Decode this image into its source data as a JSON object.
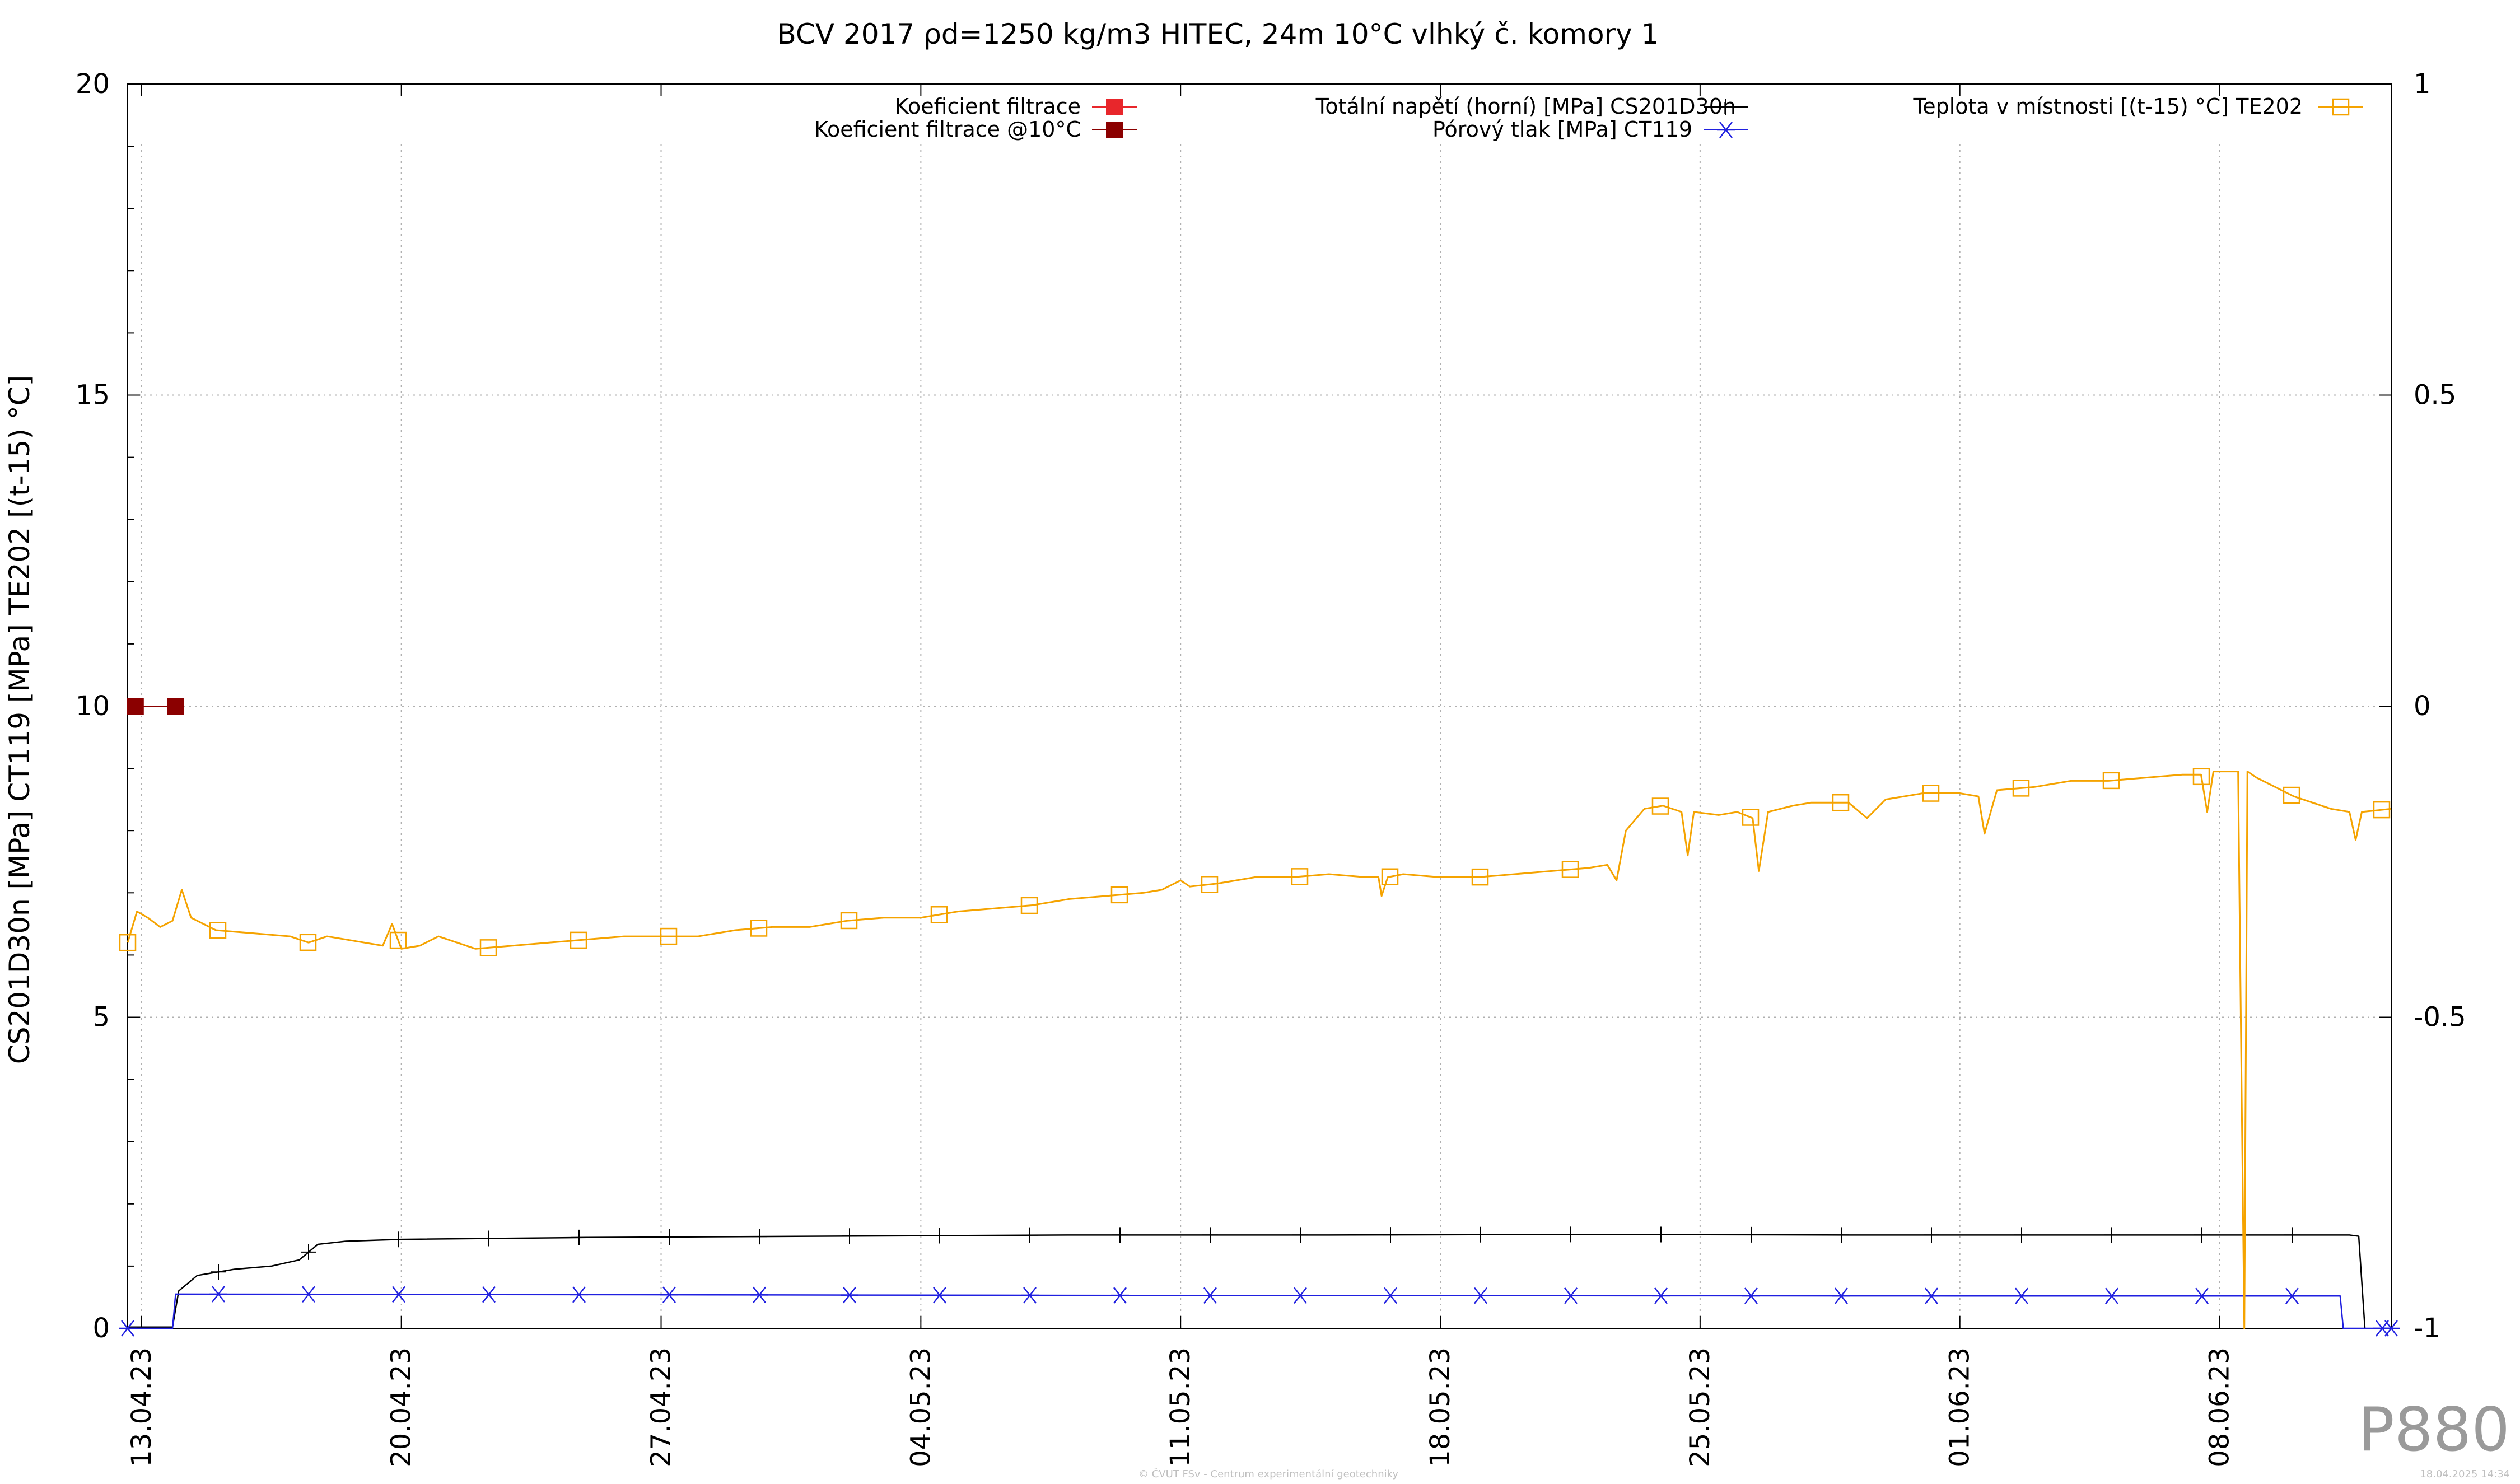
{
  "chart_data": {
    "type": "line",
    "title": "BCV 2017 ρd=1250 kg/m3 HITEC, 24m 10°C vlhký č. komory 1",
    "ylabel": "CS201D30n [MPa] CT119 [MPa] TE202 [(t-15) °C]",
    "xlabel": "",
    "ylim": [
      0,
      20
    ],
    "y2lim": [
      -1,
      1
    ],
    "yticks": [
      "0",
      "5",
      "10",
      "15",
      "20"
    ],
    "y2ticks": [
      "-1",
      "-0.5",
      "0",
      "0.5",
      "1"
    ],
    "xlim": [
      "2023-04-12T15:00",
      "2023-06-12T15:00"
    ],
    "xticks": [
      {
        "date": "2023-04-13",
        "label": "13.04.23"
      },
      {
        "date": "2023-04-20",
        "label": "20.04.23"
      },
      {
        "date": "2023-04-27",
        "label": "27.04.23"
      },
      {
        "date": "2023-05-04",
        "label": "04.05.23"
      },
      {
        "date": "2023-05-11",
        "label": "11.05.23"
      },
      {
        "date": "2023-05-18",
        "label": "18.05.23"
      },
      {
        "date": "2023-05-25",
        "label": "25.05.23"
      },
      {
        "date": "2023-06-01",
        "label": "01.06.23"
      },
      {
        "date": "2023-06-08",
        "label": "08.06.23"
      }
    ],
    "grid": true,
    "legend_position": "top",
    "series": [
      {
        "name": "Koeficient filtrace",
        "color": "#e8262b",
        "marker": "filled-square",
        "axis": "y2",
        "points": []
      },
      {
        "name": "Koeficient filtrace @10°C",
        "color": "#8b0000",
        "marker": "filled-square",
        "axis": "y2",
        "points": [
          [
            "2023-04-12T20:00",
            0.0
          ],
          [
            "2023-04-13T22:00",
            0.0
          ]
        ]
      },
      {
        "name": "Totální napětí (horní) [MPa] CS201D30n",
        "color": "#000000",
        "marker": "plus",
        "axis": "y",
        "points": [
          [
            "2023-04-12T15:00",
            0.02
          ],
          [
            "2023-04-13T20:00",
            0.02
          ],
          [
            "2023-04-14T00:00",
            0.6
          ],
          [
            "2023-04-14T12:00",
            0.85
          ],
          [
            "2023-04-15T12:00",
            0.95
          ],
          [
            "2023-04-16T12:00",
            1.0
          ],
          [
            "2023-04-17T06:00",
            1.1
          ],
          [
            "2023-04-17T18:00",
            1.35
          ],
          [
            "2023-04-18T12:00",
            1.4
          ],
          [
            "2023-04-20T00:00",
            1.43
          ],
          [
            "2023-04-25T00:00",
            1.46
          ],
          [
            "2023-05-01T00:00",
            1.48
          ],
          [
            "2023-05-08T00:00",
            1.5
          ],
          [
            "2023-05-15T00:00",
            1.5
          ],
          [
            "2023-05-22T00:00",
            1.51
          ],
          [
            "2023-05-29T00:00",
            1.5
          ],
          [
            "2023-06-05T00:00",
            1.5
          ],
          [
            "2023-06-11T12:00",
            1.5
          ],
          [
            "2023-06-11T18:00",
            1.48
          ],
          [
            "2023-06-11T22:00",
            0.0
          ]
        ]
      },
      {
        "name": "Pórový tlak [MPa] CT119",
        "color": "#2020e0",
        "marker": "asterisk",
        "axis": "y",
        "points": [
          [
            "2023-04-12T15:00",
            0.0
          ],
          [
            "2023-04-13T20:00",
            0.0
          ],
          [
            "2023-04-13T22:00",
            0.55
          ],
          [
            "2023-05-08T00:00",
            0.53
          ],
          [
            "2023-06-01T00:00",
            0.52
          ],
          [
            "2023-06-11T06:00",
            0.52
          ],
          [
            "2023-06-11T08:00",
            0.0
          ],
          [
            "2023-06-12T15:00",
            0.0
          ]
        ]
      },
      {
        "name": "Teplota v místnosti [(t-15) °C] TE202",
        "color": "#f5a300",
        "marker": "open-square",
        "axis": "y",
        "points": [
          [
            "2023-04-12T15:00",
            6.2
          ],
          [
            "2023-04-12T21:00",
            6.7
          ],
          [
            "2023-04-13T04:00",
            6.6
          ],
          [
            "2023-04-13T12:00",
            6.45
          ],
          [
            "2023-04-13T20:00",
            6.55
          ],
          [
            "2023-04-14T02:00",
            7.05
          ],
          [
            "2023-04-14T08:00",
            6.6
          ],
          [
            "2023-04-15T00:00",
            6.4
          ],
          [
            "2023-04-16T00:00",
            6.35
          ],
          [
            "2023-04-17T00:00",
            6.3
          ],
          [
            "2023-04-17T12:00",
            6.2
          ],
          [
            "2023-04-18T00:00",
            6.3
          ],
          [
            "2023-04-19T00:00",
            6.2
          ],
          [
            "2023-04-19T12:00",
            6.15
          ],
          [
            "2023-04-19T18:00",
            6.5
          ],
          [
            "2023-04-20T00:00",
            6.1
          ],
          [
            "2023-04-20T12:00",
            6.15
          ],
          [
            "2023-04-21T00:00",
            6.3
          ],
          [
            "2023-04-21T12:00",
            6.2
          ],
          [
            "2023-04-22T00:00",
            6.1
          ],
          [
            "2023-04-23T00:00",
            6.15
          ],
          [
            "2023-04-24T00:00",
            6.2
          ],
          [
            "2023-04-25T00:00",
            6.25
          ],
          [
            "2023-04-26T00:00",
            6.3
          ],
          [
            "2023-04-27T00:00",
            6.3
          ],
          [
            "2023-04-28T00:00",
            6.3
          ],
          [
            "2023-04-29T00:00",
            6.4
          ],
          [
            "2023-04-30T00:00",
            6.45
          ],
          [
            "2023-05-01T00:00",
            6.45
          ],
          [
            "2023-05-02T00:00",
            6.55
          ],
          [
            "2023-05-03T00:00",
            6.6
          ],
          [
            "2023-05-04T00:00",
            6.6
          ],
          [
            "2023-05-05T00:00",
            6.7
          ],
          [
            "2023-05-06T00:00",
            6.75
          ],
          [
            "2023-05-07T00:00",
            6.8
          ],
          [
            "2023-05-08T00:00",
            6.9
          ],
          [
            "2023-05-09T00:00",
            6.95
          ],
          [
            "2023-05-10T00:00",
            7.0
          ],
          [
            "2023-05-10T12:00",
            7.05
          ],
          [
            "2023-05-11T00:00",
            7.2
          ],
          [
            "2023-05-11T06:00",
            7.1
          ],
          [
            "2023-05-12T00:00",
            7.15
          ],
          [
            "2023-05-13T00:00",
            7.25
          ],
          [
            "2023-05-14T00:00",
            7.25
          ],
          [
            "2023-05-15T00:00",
            7.3
          ],
          [
            "2023-05-16T00:00",
            7.25
          ],
          [
            "2023-05-16T08:00",
            7.25
          ],
          [
            "2023-05-16T10:00",
            6.95
          ],
          [
            "2023-05-16T14:00",
            7.25
          ],
          [
            "2023-05-17T00:00",
            7.3
          ],
          [
            "2023-05-18T00:00",
            7.25
          ],
          [
            "2023-05-19T00:00",
            7.25
          ],
          [
            "2023-05-20T00:00",
            7.3
          ],
          [
            "2023-05-21T00:00",
            7.35
          ],
          [
            "2023-05-22T00:00",
            7.4
          ],
          [
            "2023-05-22T12:00",
            7.45
          ],
          [
            "2023-05-22T18:00",
            7.2
          ],
          [
            "2023-05-23T00:00",
            8.0
          ],
          [
            "2023-05-23T12:00",
            8.35
          ],
          [
            "2023-05-24T00:00",
            8.4
          ],
          [
            "2023-05-24T12:00",
            8.3
          ],
          [
            "2023-05-24T16:00",
            7.6
          ],
          [
            "2023-05-24T20:00",
            8.3
          ],
          [
            "2023-05-25T12:00",
            8.25
          ],
          [
            "2023-05-26T00:00",
            8.3
          ],
          [
            "2023-05-26T10:00",
            8.2
          ],
          [
            "2023-05-26T14:00",
            7.35
          ],
          [
            "2023-05-26T20:00",
            8.3
          ],
          [
            "2023-05-27T12:00",
            8.4
          ],
          [
            "2023-05-28T00:00",
            8.45
          ],
          [
            "2023-05-29T00:00",
            8.45
          ],
          [
            "2023-05-29T12:00",
            8.2
          ],
          [
            "2023-05-30T00:00",
            8.5
          ],
          [
            "2023-05-31T00:00",
            8.6
          ],
          [
            "2023-06-01T00:00",
            8.6
          ],
          [
            "2023-06-01T12:00",
            8.55
          ],
          [
            "2023-06-01T16:00",
            7.95
          ],
          [
            "2023-06-02T00:00",
            8.65
          ],
          [
            "2023-06-03T00:00",
            8.7
          ],
          [
            "2023-06-04T00:00",
            8.8
          ],
          [
            "2023-06-05T00:00",
            8.8
          ],
          [
            "2023-06-06T00:00",
            8.85
          ],
          [
            "2023-06-07T00:00",
            8.9
          ],
          [
            "2023-06-07T12:00",
            8.9
          ],
          [
            "2023-06-07T16:00",
            8.3
          ],
          [
            "2023-06-07T20:00",
            8.95
          ],
          [
            "2023-06-08T12:00",
            8.95
          ],
          [
            "2023-06-08T14:00",
            4.4
          ],
          [
            "2023-06-08T16:00",
            0.0
          ],
          [
            "2023-06-08T18:00",
            8.95
          ],
          [
            "2023-06-09T00:00",
            8.85
          ],
          [
            "2023-06-10T00:00",
            8.55
          ],
          [
            "2023-06-10T12:00",
            8.45
          ],
          [
            "2023-06-11T00:00",
            8.35
          ],
          [
            "2023-06-11T12:00",
            8.3
          ],
          [
            "2023-06-11T16:00",
            7.85
          ],
          [
            "2023-06-11T20:00",
            8.3
          ],
          [
            "2023-06-12T15:00",
            8.35
          ]
        ]
      }
    ],
    "watermark": "P880",
    "footer_center": "© ČVUT FSv - Centrum experimentální geotechniky",
    "footer_right": "18.04.2025 14:34"
  }
}
